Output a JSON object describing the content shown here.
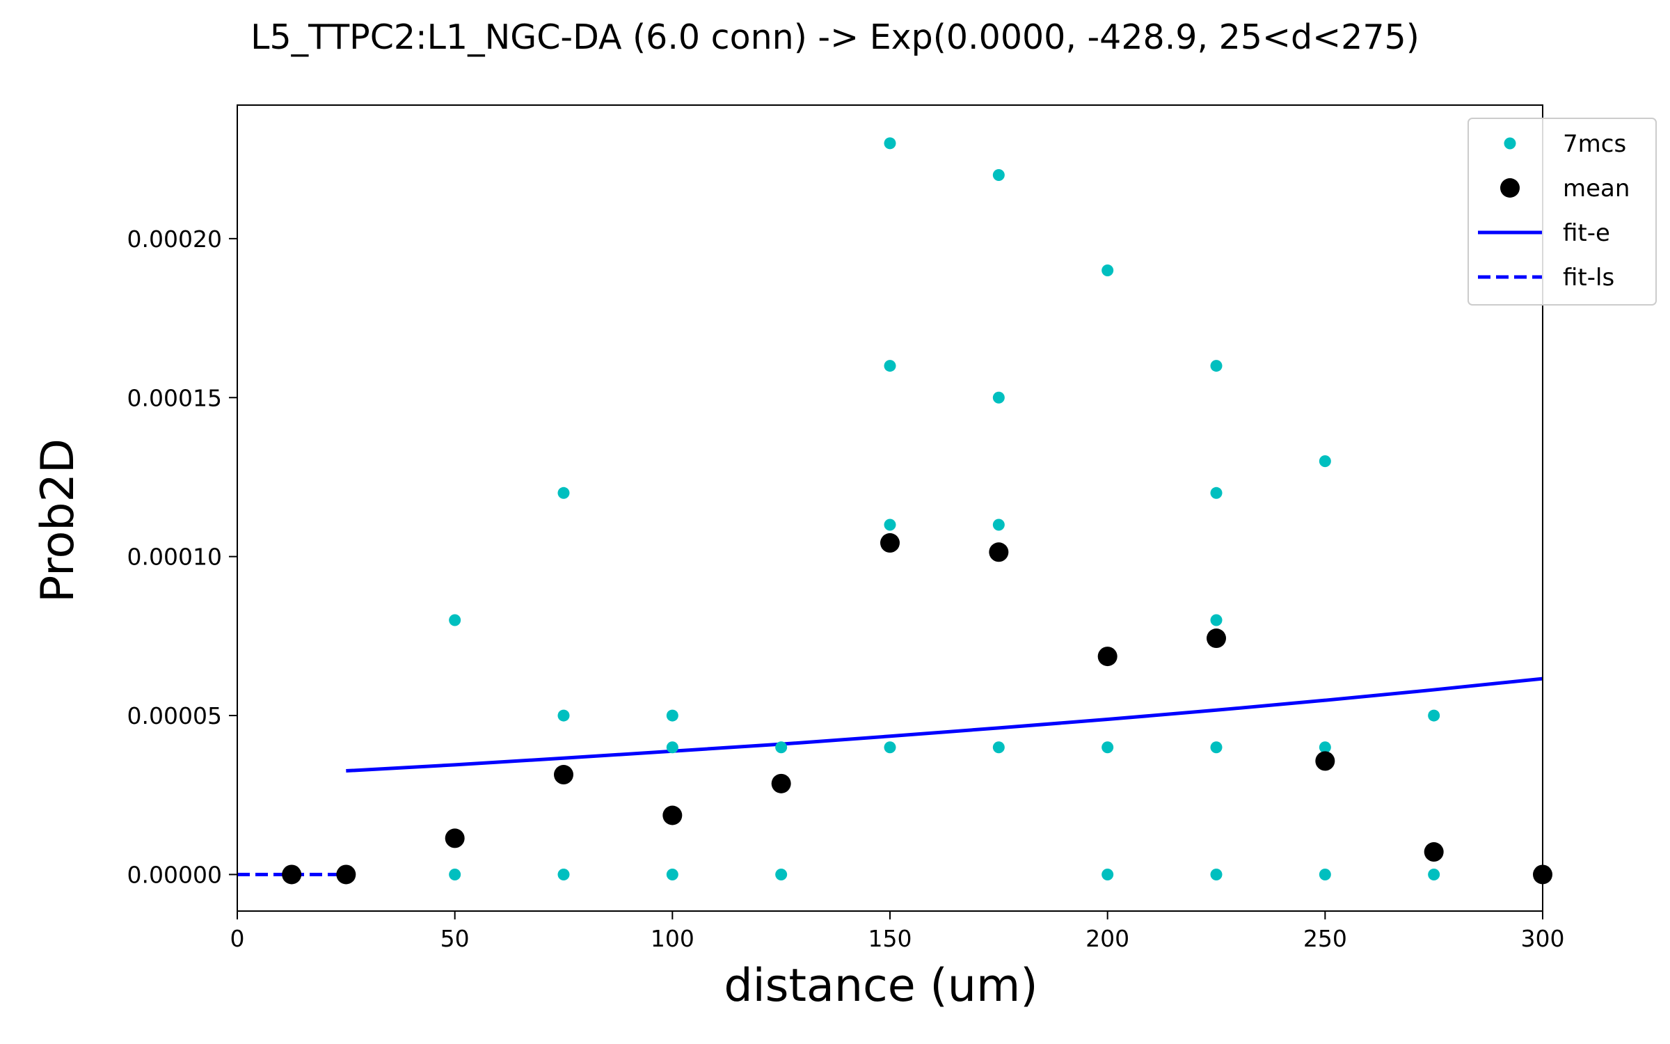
{
  "chart_data": {
    "type": "scatter",
    "title": "L5_TTPC2:L1_NGC-DA (6.0 conn) -> Exp(0.0000, -428.9, 25<d<275)",
    "xlabel": "distance (um)",
    "ylabel": "Prob2D",
    "xlim": [
      0,
      300
    ],
    "ylim": [
      -1.15e-05,
      0.000242
    ],
    "xticks": [
      0,
      50,
      100,
      150,
      200,
      250,
      300
    ],
    "xtick_labels": [
      "0",
      "50",
      "100",
      "150",
      "200",
      "250",
      "300"
    ],
    "yticks": [
      0,
      5e-05,
      0.0001,
      0.00015,
      0.0002
    ],
    "ytick_labels": [
      "0.00000",
      "0.00005",
      "0.00010",
      "0.00015",
      "0.00020"
    ],
    "grid": false,
    "legend_position": "top-right",
    "series": [
      {
        "name": "7mcs",
        "kind": "points",
        "color": "#00bfbf",
        "x": [
          50,
          50,
          75,
          75,
          75,
          100,
          100,
          100,
          125,
          125,
          150,
          150,
          150,
          150,
          175,
          175,
          175,
          175,
          200,
          200,
          200,
          225,
          225,
          225,
          225,
          225,
          250,
          250,
          250,
          275,
          275
        ],
        "y": [
          8e-05,
          0.0,
          0.00012,
          5e-05,
          0.0,
          5e-05,
          4e-05,
          0.0,
          4e-05,
          0.0,
          0.00023,
          0.00016,
          0.00011,
          4e-05,
          0.00022,
          0.00015,
          0.00011,
          4e-05,
          0.00019,
          4e-05,
          0.0,
          0.00016,
          0.00012,
          8e-05,
          4e-05,
          0.0,
          0.00013,
          4e-05,
          0.0,
          5e-05,
          0.0
        ]
      },
      {
        "name": "mean",
        "kind": "points",
        "color": "#000000",
        "x": [
          12.5,
          25,
          50,
          75,
          100,
          125,
          150,
          175,
          200,
          225,
          250,
          275,
          300
        ],
        "y": [
          0.0,
          0.0,
          1.14e-05,
          3.14e-05,
          1.86e-05,
          2.86e-05,
          0.0001043,
          0.0001014,
          6.86e-05,
          7.43e-05,
          3.57e-05,
          7.1e-06,
          0.0
        ]
      },
      {
        "name": "fit-e",
        "kind": "line",
        "style": "solid",
        "color": "#0000ff",
        "x": [
          25,
          50,
          75,
          100,
          125,
          150,
          175,
          200,
          225,
          250,
          275,
          300
        ],
        "y": [
          3.26e-05,
          3.45e-05,
          3.66e-05,
          3.88e-05,
          4.1e-05,
          4.35e-05,
          4.61e-05,
          4.88e-05,
          5.17e-05,
          5.48e-05,
          5.81e-05,
          6.16e-05
        ]
      },
      {
        "name": "fit-ls",
        "kind": "line",
        "style": "dashed",
        "color": "#0000ff",
        "x": [
          0,
          25
        ],
        "y": [
          0.0,
          0.0
        ]
      }
    ]
  }
}
